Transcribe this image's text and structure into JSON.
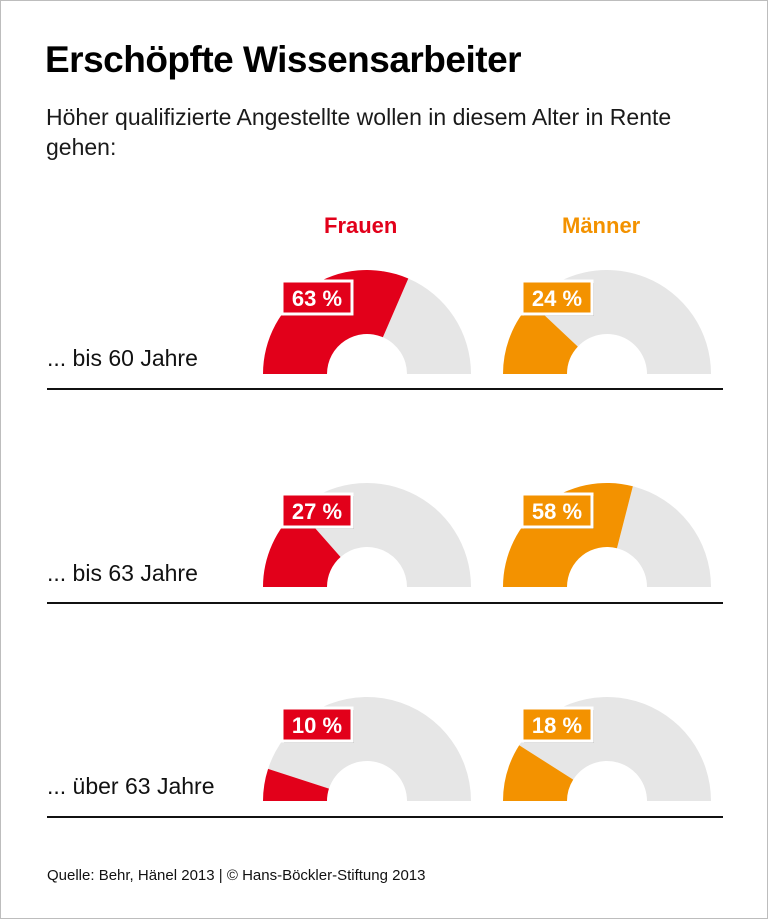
{
  "title": "Erschöpfte Wissensarbeiter",
  "subtitle": "Höher qualifizierte Angestellte wollen in diesem Alter in Rente gehen:",
  "source": "Quelle: Behr, Hänel 2013 | © Hans-Böckler-Stiftung 2013",
  "colors": {
    "frauen": "#e2001a",
    "maenner": "#f39200",
    "rest": "#e6e6e6"
  },
  "chart_data": {
    "type": "half-donut",
    "categories": [
      "... bis 60 Jahre",
      "... bis 63 Jahre",
      "... über 63 Jahre"
    ],
    "series": [
      {
        "name": "Frauen",
        "values": [
          63,
          27,
          10
        ],
        "labels": [
          "63 %",
          "27 %",
          "10 %"
        ]
      },
      {
        "name": "Männer",
        "values": [
          24,
          58,
          18
        ],
        "labels": [
          "24 %",
          "58 %",
          "18 %"
        ]
      }
    ],
    "unit": "%"
  }
}
